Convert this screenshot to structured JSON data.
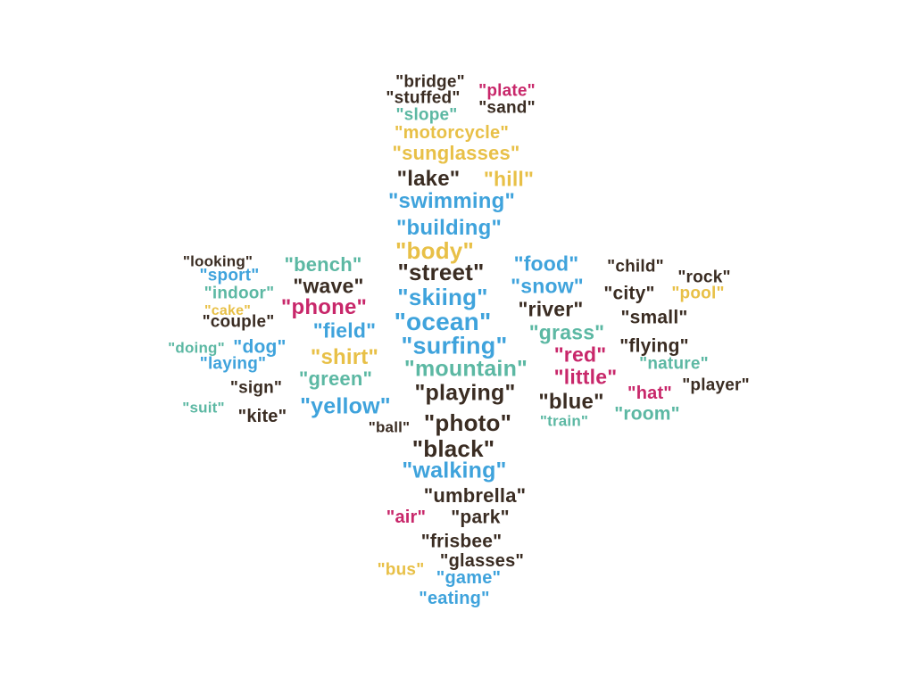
{
  "palette": {
    "dark": "#3a2c22",
    "blue": "#3fa3dc",
    "teal": "#5cb8a3",
    "magenta": "#c8276a",
    "yellow": "#e8c047"
  },
  "words": [
    {
      "text": "\"bridge\"",
      "color": "dark"
    },
    {
      "text": "\"plate\"",
      "color": "magenta"
    },
    {
      "text": "\"stuffed\"",
      "color": "dark"
    },
    {
      "text": "\"slope\"",
      "color": "teal"
    },
    {
      "text": "\"sand\"",
      "color": "dark"
    },
    {
      "text": "\"motorcycle\"",
      "color": "yellow"
    },
    {
      "text": "\"sunglasses\"",
      "color": "yellow"
    },
    {
      "text": "\"lake\"",
      "color": "dark"
    },
    {
      "text": "\"hill\"",
      "color": "yellow"
    },
    {
      "text": "\"swimming\"",
      "color": "blue"
    },
    {
      "text": "\"building\"",
      "color": "blue"
    },
    {
      "text": "\"body\"",
      "color": "yellow"
    },
    {
      "text": "\"looking\"",
      "color": "dark"
    },
    {
      "text": "\"sport\"",
      "color": "blue"
    },
    {
      "text": "\"bench\"",
      "color": "teal"
    },
    {
      "text": "\"street\"",
      "color": "dark"
    },
    {
      "text": "\"food\"",
      "color": "blue"
    },
    {
      "text": "\"child\"",
      "color": "dark"
    },
    {
      "text": "\"rock\"",
      "color": "dark"
    },
    {
      "text": "\"indoor\"",
      "color": "teal"
    },
    {
      "text": "\"wave\"",
      "color": "dark"
    },
    {
      "text": "\"skiing\"",
      "color": "blue"
    },
    {
      "text": "\"snow\"",
      "color": "blue"
    },
    {
      "text": "\"city\"",
      "color": "dark"
    },
    {
      "text": "\"pool\"",
      "color": "yellow"
    },
    {
      "text": "\"cake\"",
      "color": "yellow"
    },
    {
      "text": "\"couple\"",
      "color": "dark"
    },
    {
      "text": "\"phone\"",
      "color": "magenta"
    },
    {
      "text": "\"ocean\"",
      "color": "blue"
    },
    {
      "text": "\"river\"",
      "color": "dark"
    },
    {
      "text": "\"small\"",
      "color": "dark"
    },
    {
      "text": "\"field\"",
      "color": "blue"
    },
    {
      "text": "\"grass\"",
      "color": "teal"
    },
    {
      "text": "\"doing\"",
      "color": "teal"
    },
    {
      "text": "\"dog\"",
      "color": "blue"
    },
    {
      "text": "\"surfing\"",
      "color": "blue"
    },
    {
      "text": "\"flying\"",
      "color": "dark"
    },
    {
      "text": "\"laying\"",
      "color": "blue"
    },
    {
      "text": "\"shirt\"",
      "color": "yellow"
    },
    {
      "text": "\"red\"",
      "color": "magenta"
    },
    {
      "text": "\"nature\"",
      "color": "teal"
    },
    {
      "text": "\"mountain\"",
      "color": "teal"
    },
    {
      "text": "\"green\"",
      "color": "teal"
    },
    {
      "text": "\"little\"",
      "color": "magenta"
    },
    {
      "text": "\"player\"",
      "color": "dark"
    },
    {
      "text": "\"sign\"",
      "color": "dark"
    },
    {
      "text": "\"playing\"",
      "color": "dark"
    },
    {
      "text": "\"hat\"",
      "color": "magenta"
    },
    {
      "text": "\"blue\"",
      "color": "dark"
    },
    {
      "text": "\"suit\"",
      "color": "teal"
    },
    {
      "text": "\"yellow\"",
      "color": "blue"
    },
    {
      "text": "\"kite\"",
      "color": "dark"
    },
    {
      "text": "\"room\"",
      "color": "teal"
    },
    {
      "text": "\"photo\"",
      "color": "dark"
    },
    {
      "text": "\"train\"",
      "color": "teal"
    },
    {
      "text": "\"ball\"",
      "color": "dark"
    },
    {
      "text": "\"black\"",
      "color": "dark"
    },
    {
      "text": "\"walking\"",
      "color": "blue"
    },
    {
      "text": "\"umbrella\"",
      "color": "dark"
    },
    {
      "text": "\"air\"",
      "color": "magenta"
    },
    {
      "text": "\"park\"",
      "color": "dark"
    },
    {
      "text": "\"frisbee\"",
      "color": "dark"
    },
    {
      "text": "\"glasses\"",
      "color": "dark"
    },
    {
      "text": "\"bus\"",
      "color": "yellow"
    },
    {
      "text": "\"game\"",
      "color": "blue"
    },
    {
      "text": "\"eating\"",
      "color": "blue"
    }
  ]
}
